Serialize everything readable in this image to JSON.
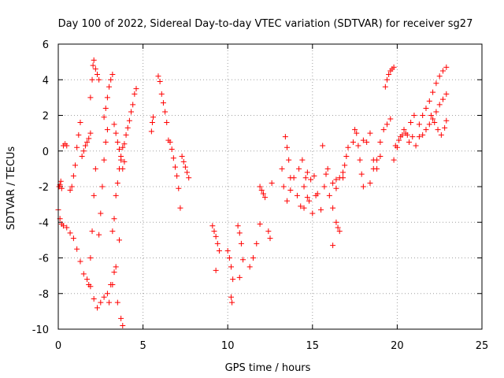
{
  "chart_data": {
    "type": "scatter",
    "title": "Day 100 of 2022, Sidereal Day-to-day VTEC variation (SDTVAR) for receiver sg27",
    "xlabel": "GPS time / hours",
    "ylabel": "SDTVAR / TECUs",
    "xlim": [
      0,
      25
    ],
    "ylim": [
      -10,
      6
    ],
    "xticks": [
      0,
      5,
      10,
      15,
      20,
      25
    ],
    "yticks": [
      -10,
      -8,
      -6,
      -4,
      -2,
      0,
      2,
      4,
      6
    ],
    "grid": true,
    "marker": "+",
    "color": "#ff0000",
    "series": [
      {
        "name": "s1",
        "x": [
          0.0,
          0.1,
          0.2,
          0.3,
          0.5,
          0.7,
          0.9,
          1.1,
          1.3,
          1.5,
          1.7,
          1.9,
          2.1,
          2.3,
          2.5,
          2.7,
          2.9,
          3.1,
          3.3,
          3.5,
          3.7,
          3.8
        ],
        "y": [
          -3.3,
          -3.8,
          -4.1,
          -4.2,
          -4.3,
          -4.6,
          -4.9,
          -5.5,
          -6.2,
          -6.9,
          -7.2,
          -7.6,
          -8.3,
          -8.8,
          -8.5,
          -8.2,
          -8.0,
          -7.5,
          -6.8,
          -8.5,
          -9.4,
          -9.8
        ]
      },
      {
        "name": "s2",
        "x": [
          0.05,
          0.1,
          0.15,
          0.2
        ],
        "y": [
          -2.0,
          -1.9,
          -1.7,
          -2.1
        ]
      },
      {
        "name": "s3",
        "x": [
          0.3,
          0.4,
          0.5
        ],
        "y": [
          0.3,
          0.4,
          0.3
        ]
      },
      {
        "name": "s4",
        "x": [
          0.7,
          0.8,
          0.9,
          1.0,
          1.1,
          1.2,
          1.3
        ],
        "y": [
          -2.2,
          -2.0,
          -1.4,
          -0.8,
          0.2,
          0.9,
          1.6
        ]
      },
      {
        "name": "s5",
        "x": [
          1.4,
          1.5,
          1.6,
          1.7,
          1.8,
          1.9
        ],
        "y": [
          -0.3,
          0.0,
          0.3,
          0.5,
          0.7,
          1.0
        ]
      },
      {
        "name": "s6",
        "x": [
          1.9,
          2.0,
          2.05,
          2.1,
          2.2,
          2.3,
          2.4
        ],
        "y": [
          3.0,
          4.0,
          4.8,
          5.1,
          4.6,
          4.3,
          4.0
        ]
      },
      {
        "name": "s7",
        "x": [
          1.8,
          1.9,
          2.0,
          2.1,
          2.2
        ],
        "y": [
          -7.5,
          -6.0,
          -4.5,
          -2.5,
          -1.0
        ]
      },
      {
        "name": "s8",
        "x": [
          2.4,
          2.5,
          2.6,
          2.7,
          2.8,
          2.9
        ],
        "y": [
          -4.7,
          -3.5,
          -2.0,
          -0.5,
          0.5,
          1.2
        ]
      },
      {
        "name": "s9",
        "x": [
          2.7,
          2.8,
          2.9,
          3.0,
          3.1,
          3.2
        ],
        "y": [
          1.9,
          2.4,
          3.0,
          3.6,
          4.0,
          4.3
        ]
      },
      {
        "name": "s10",
        "x": [
          3.2,
          3.3,
          3.4,
          3.5,
          3.6,
          3.7,
          3.8,
          3.9
        ],
        "y": [
          -4.5,
          -3.8,
          -2.5,
          -1.8,
          -1.0,
          -0.3,
          0.2,
          0.4
        ]
      },
      {
        "name": "s11",
        "x": [
          3.3,
          3.4,
          3.5,
          3.6,
          3.7,
          3.8,
          3.9
        ],
        "y": [
          1.5,
          1.0,
          0.5,
          0.1,
          -0.5,
          -1.0,
          -0.6
        ]
      },
      {
        "name": "s12",
        "x": [
          3.0,
          3.2,
          3.4,
          3.6
        ],
        "y": [
          -8.5,
          -7.5,
          -6.5,
          -5.0
        ]
      },
      {
        "name": "s13",
        "x": [
          4.0,
          4.1,
          4.2,
          4.3,
          4.4,
          4.5,
          4.6
        ],
        "y": [
          0.9,
          1.3,
          1.7,
          2.2,
          2.6,
          3.2,
          3.5
        ]
      },
      {
        "name": "s14",
        "x": [
          5.5,
          5.55,
          5.6
        ],
        "y": [
          1.1,
          1.6,
          1.9
        ]
      },
      {
        "name": "s15",
        "x": [
          5.9,
          6.0,
          6.1,
          6.2,
          6.3,
          6.4,
          6.5
        ],
        "y": [
          4.2,
          3.9,
          3.2,
          2.7,
          2.2,
          1.6,
          0.6
        ]
      },
      {
        "name": "s16",
        "x": [
          6.6,
          6.7,
          6.8,
          6.9,
          7.0,
          7.1
        ],
        "y": [
          0.5,
          0.1,
          -0.4,
          -0.9,
          -1.4,
          -2.1
        ]
      },
      {
        "name": "s17",
        "x": [
          7.3,
          7.4,
          7.5,
          7.6,
          7.7
        ],
        "y": [
          -0.3,
          -0.6,
          -0.9,
          -1.2,
          -1.5
        ]
      },
      {
        "name": "s18",
        "x": [
          7.2
        ],
        "y": [
          -3.2
        ]
      },
      {
        "name": "s19",
        "x": [
          9.1,
          9.2,
          9.3,
          9.4,
          9.5
        ],
        "y": [
          -4.2,
          -4.5,
          -4.8,
          -5.2,
          -5.6
        ]
      },
      {
        "name": "s20",
        "x": [
          9.3
        ],
        "y": [
          -6.7
        ]
      },
      {
        "name": "s21",
        "x": [
          10.0,
          10.1,
          10.2,
          10.3
        ],
        "y": [
          -5.6,
          -6.0,
          -6.5,
          -7.2
        ]
      },
      {
        "name": "s22",
        "x": [
          10.2,
          10.25
        ],
        "y": [
          -8.2,
          -8.5
        ]
      },
      {
        "name": "s23",
        "x": [
          10.6,
          10.7,
          10.8,
          10.9
        ],
        "y": [
          -4.2,
          -4.6,
          -5.2,
          -6.1
        ]
      },
      {
        "name": "s24",
        "x": [
          10.7
        ],
        "y": [
          -7.1
        ]
      },
      {
        "name": "s25",
        "x": [
          11.3,
          11.5,
          11.7,
          11.9,
          12.1
        ],
        "y": [
          -6.5,
          -6.0,
          -5.2,
          -4.1,
          -2.4
        ]
      },
      {
        "name": "s26",
        "x": [
          11.9,
          12.0,
          12.1,
          12.2
        ],
        "y": [
          -2.0,
          -2.2,
          -2.4,
          -2.6
        ]
      },
      {
        "name": "s27",
        "x": [
          12.4,
          12.5
        ],
        "y": [
          -4.5,
          -4.9
        ]
      },
      {
        "name": "s28",
        "x": [
          12.6
        ],
        "y": [
          -1.8
        ]
      },
      {
        "name": "s29",
        "x": [
          13.2,
          13.3,
          13.5,
          13.7,
          13.9,
          14.1,
          14.3,
          14.5,
          14.7
        ],
        "y": [
          -1.0,
          -2.0,
          -2.8,
          -2.2,
          -1.5,
          -2.5,
          -3.1,
          -2.0,
          -1.2
        ]
      },
      {
        "name": "s30",
        "x": [
          13.4,
          13.5,
          13.6,
          13.7
        ],
        "y": [
          0.8,
          0.2,
          -0.5,
          -1.5
        ]
      },
      {
        "name": "s31",
        "x": [
          14.2,
          14.4,
          14.6,
          14.8,
          15.0,
          15.2
        ],
        "y": [
          -1.0,
          -0.5,
          -1.5,
          -2.8,
          -3.5,
          -2.5
        ]
      },
      {
        "name": "s32",
        "x": [
          14.5,
          14.7,
          14.9,
          15.1,
          15.3,
          15.5,
          15.7,
          15.9
        ],
        "y": [
          -3.2,
          -2.6,
          -1.6,
          -1.4,
          -2.4,
          -3.3,
          -2.0,
          -1.0
        ]
      },
      {
        "name": "s33",
        "x": [
          15.6,
          15.8,
          16.0,
          16.2,
          16.4
        ],
        "y": [
          0.3,
          -1.3,
          -2.5,
          -3.2,
          -2.1
        ]
      },
      {
        "name": "s34",
        "x": [
          16.2,
          16.4,
          16.6,
          16.8
        ],
        "y": [
          -1.8,
          -1.6,
          -1.5,
          -1.2
        ]
      },
      {
        "name": "s35",
        "x": [
          16.4,
          16.5,
          16.6
        ],
        "y": [
          -4.0,
          -4.3,
          -4.5
        ]
      },
      {
        "name": "s36",
        "x": [
          16.2
        ],
        "y": [
          -5.3
        ]
      },
      {
        "name": "s37",
        "x": [
          16.8,
          16.9,
          17.0,
          17.1
        ],
        "y": [
          -1.5,
          -0.8,
          -0.3,
          0.2
        ]
      },
      {
        "name": "s38",
        "x": [
          17.4,
          17.5,
          17.6,
          17.7,
          17.8,
          17.9,
          18.0
        ],
        "y": [
          0.5,
          1.2,
          1.0,
          0.3,
          -0.5,
          -1.3,
          -2.0
        ]
      },
      {
        "name": "s39",
        "x": [
          18.0,
          18.2,
          18.4,
          18.6,
          18.8,
          19.0
        ],
        "y": [
          0.6,
          0.5,
          1.0,
          -0.5,
          -1.0,
          -0.3
        ]
      },
      {
        "name": "s40",
        "x": [
          18.4,
          18.6,
          18.8,
          19.0,
          19.2,
          19.4,
          19.6
        ],
        "y": [
          -1.8,
          -1.0,
          -0.5,
          0.5,
          1.2,
          1.5,
          1.8
        ]
      },
      {
        "name": "s41",
        "x": [
          19.3,
          19.4,
          19.5,
          19.6,
          19.7,
          19.8
        ],
        "y": [
          3.6,
          4.0,
          4.3,
          4.5,
          4.6,
          4.7
        ]
      },
      {
        "name": "s42",
        "x": [
          19.8,
          20.0,
          20.2,
          20.4,
          20.6,
          20.8,
          21.0
        ],
        "y": [
          -0.5,
          0.2,
          0.8,
          1.2,
          0.9,
          1.6,
          2.0
        ]
      },
      {
        "name": "s43",
        "x": [
          19.9,
          20.1,
          20.3,
          20.5,
          20.7,
          20.9,
          21.1,
          21.3
        ],
        "y": [
          0.3,
          0.6,
          0.9,
          1.0,
          0.5,
          0.8,
          0.3,
          0.8
        ]
      },
      {
        "name": "s44",
        "x": [
          21.3,
          21.5,
          21.7,
          21.9,
          22.1,
          22.3,
          22.5,
          22.7,
          22.9
        ],
        "y": [
          1.5,
          2.0,
          2.4,
          2.8,
          3.3,
          3.8,
          4.2,
          4.5,
          4.7
        ]
      },
      {
        "name": "s45",
        "x": [
          21.5,
          21.7,
          21.9,
          22.1,
          22.3,
          22.5,
          22.7,
          22.9
        ],
        "y": [
          0.9,
          1.2,
          1.5,
          1.8,
          2.2,
          2.6,
          2.9,
          3.2
        ]
      },
      {
        "name": "s46",
        "x": [
          22.0,
          22.2,
          22.4,
          22.6,
          22.8,
          22.9
        ],
        "y": [
          2.0,
          1.6,
          1.2,
          0.9,
          1.3,
          1.7
        ]
      }
    ]
  }
}
